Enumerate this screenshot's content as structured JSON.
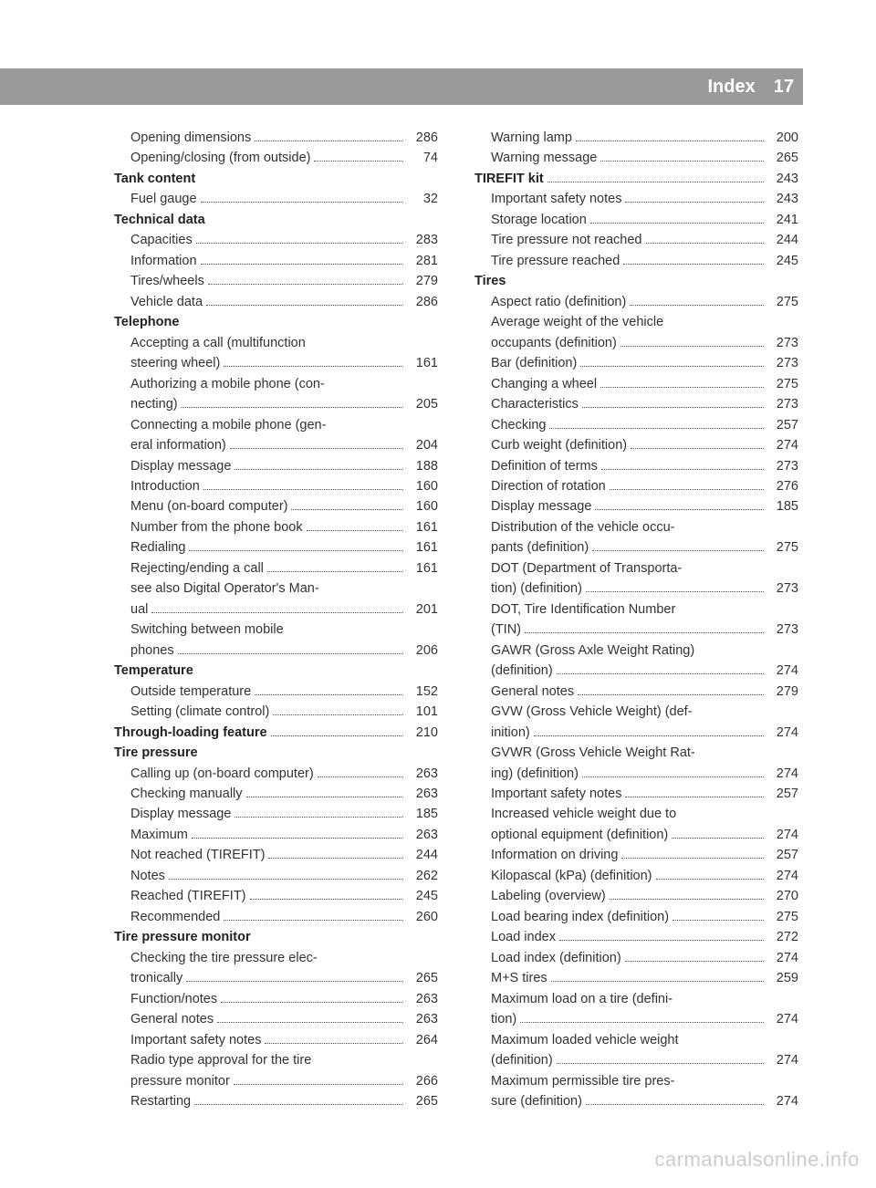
{
  "header": {
    "title": "Index",
    "page": "17"
  },
  "watermark": "carmanualsonline.info",
  "colors": {
    "header_bg": "#9a9a9a",
    "header_text": "#ffffff",
    "text": "#333333",
    "dots": "#555555",
    "watermark": "#cccccc"
  },
  "columns": {
    "left": [
      {
        "type": "sub",
        "label": "Opening dimensions",
        "page": "286"
      },
      {
        "type": "sub",
        "label": "Opening/closing (from outside)",
        "page": "74"
      },
      {
        "type": "heading",
        "label": "Tank content"
      },
      {
        "type": "sub",
        "label": "Fuel gauge",
        "page": "32"
      },
      {
        "type": "heading",
        "label": "Technical data"
      },
      {
        "type": "sub",
        "label": "Capacities",
        "page": "283"
      },
      {
        "type": "sub",
        "label": "Information",
        "page": "281"
      },
      {
        "type": "sub",
        "label": "Tires/wheels",
        "page": "279"
      },
      {
        "type": "sub",
        "label": "Vehicle data",
        "page": "286"
      },
      {
        "type": "heading",
        "label": "Telephone"
      },
      {
        "type": "text",
        "label": "Accepting a call (multifunction"
      },
      {
        "type": "cont",
        "label": "steering wheel)",
        "page": "161"
      },
      {
        "type": "text",
        "label": "Authorizing a mobile phone (con-"
      },
      {
        "type": "cont",
        "label": "necting)",
        "page": "205"
      },
      {
        "type": "text",
        "label": "Connecting a mobile phone (gen-"
      },
      {
        "type": "cont",
        "label": "eral information)",
        "page": "204"
      },
      {
        "type": "sub",
        "label": "Display message",
        "page": "188"
      },
      {
        "type": "sub",
        "label": "Introduction",
        "page": "160"
      },
      {
        "type": "sub",
        "label": "Menu (on-board computer)",
        "page": "160"
      },
      {
        "type": "sub",
        "label": "Number from the phone book",
        "page": "161"
      },
      {
        "type": "sub",
        "label": "Redialing",
        "page": "161"
      },
      {
        "type": "sub",
        "label": "Rejecting/ending a call",
        "page": "161"
      },
      {
        "type": "text",
        "label": "see also Digital Operator's Man-"
      },
      {
        "type": "cont",
        "label": "ual",
        "page": "201"
      },
      {
        "type": "text",
        "label": "Switching between mobile"
      },
      {
        "type": "cont",
        "label": "phones",
        "page": "206"
      },
      {
        "type": "heading",
        "label": "Temperature"
      },
      {
        "type": "sub",
        "label": "Outside temperature",
        "page": "152"
      },
      {
        "type": "sub",
        "label": "Setting (climate control)",
        "page": "101"
      },
      {
        "type": "bold",
        "label": "Through-loading feature",
        "page": "210"
      },
      {
        "type": "heading",
        "label": "Tire pressure"
      },
      {
        "type": "sub",
        "label": "Calling up (on-board computer)",
        "page": "263"
      },
      {
        "type": "sub",
        "label": "Checking manually",
        "page": "263"
      },
      {
        "type": "sub",
        "label": "Display message",
        "page": "185"
      },
      {
        "type": "sub",
        "label": "Maximum",
        "page": "263"
      },
      {
        "type": "sub",
        "label": "Not reached (TIREFIT)",
        "page": "244"
      },
      {
        "type": "sub",
        "label": "Notes",
        "page": "262"
      },
      {
        "type": "sub",
        "label": "Reached (TIREFIT)",
        "page": "245"
      },
      {
        "type": "sub",
        "label": "Recommended",
        "page": "260"
      },
      {
        "type": "heading",
        "label": "Tire pressure monitor"
      },
      {
        "type": "text",
        "label": "Checking the tire pressure elec-"
      },
      {
        "type": "cont",
        "label": "tronically",
        "page": "265"
      },
      {
        "type": "sub",
        "label": "Function/notes",
        "page": "263"
      },
      {
        "type": "sub",
        "label": "General notes",
        "page": "263"
      },
      {
        "type": "sub",
        "label": "Important safety notes",
        "page": "264"
      },
      {
        "type": "text",
        "label": "Radio type approval for the tire"
      },
      {
        "type": "cont",
        "label": "pressure monitor",
        "page": "266"
      },
      {
        "type": "sub",
        "label": "Restarting",
        "page": "265"
      }
    ],
    "right": [
      {
        "type": "sub",
        "label": "Warning lamp",
        "page": "200"
      },
      {
        "type": "sub",
        "label": "Warning message",
        "page": "265"
      },
      {
        "type": "bold",
        "label": "TIREFIT kit",
        "page": "243"
      },
      {
        "type": "sub",
        "label": "Important safety notes",
        "page": "243"
      },
      {
        "type": "sub",
        "label": "Storage location",
        "page": "241"
      },
      {
        "type": "sub",
        "label": "Tire pressure not reached",
        "page": "244"
      },
      {
        "type": "sub",
        "label": "Tire pressure reached",
        "page": "245"
      },
      {
        "type": "heading",
        "label": "Tires"
      },
      {
        "type": "sub",
        "label": "Aspect ratio (definition)",
        "page": "275"
      },
      {
        "type": "text",
        "label": "Average weight of the vehicle"
      },
      {
        "type": "cont",
        "label": "occupants (definition)",
        "page": "273"
      },
      {
        "type": "sub",
        "label": "Bar (definition)",
        "page": "273"
      },
      {
        "type": "sub",
        "label": "Changing a wheel",
        "page": "275"
      },
      {
        "type": "sub",
        "label": "Characteristics",
        "page": "273"
      },
      {
        "type": "sub",
        "label": "Checking",
        "page": "257"
      },
      {
        "type": "sub",
        "label": "Curb weight (definition)",
        "page": "274"
      },
      {
        "type": "sub",
        "label": "Definition of terms",
        "page": "273"
      },
      {
        "type": "sub",
        "label": "Direction of rotation",
        "page": "276"
      },
      {
        "type": "sub",
        "label": "Display message",
        "page": "185"
      },
      {
        "type": "text",
        "label": "Distribution of the vehicle occu-"
      },
      {
        "type": "cont",
        "label": "pants (definition)",
        "page": "275"
      },
      {
        "type": "text",
        "label": "DOT (Department of Transporta-"
      },
      {
        "type": "cont",
        "label": "tion) (definition)",
        "page": "273"
      },
      {
        "type": "text",
        "label": "DOT, Tire Identification Number"
      },
      {
        "type": "cont",
        "label": "(TIN)",
        "page": "273"
      },
      {
        "type": "text",
        "label": "GAWR (Gross Axle Weight Rating)"
      },
      {
        "type": "cont",
        "label": "(definition)",
        "page": "274"
      },
      {
        "type": "sub",
        "label": "General notes",
        "page": "279"
      },
      {
        "type": "text",
        "label": "GVW (Gross Vehicle Weight) (def-"
      },
      {
        "type": "cont",
        "label": "inition)",
        "page": "274"
      },
      {
        "type": "text",
        "label": "GVWR (Gross Vehicle Weight Rat-"
      },
      {
        "type": "cont",
        "label": "ing) (definition)",
        "page": "274"
      },
      {
        "type": "sub",
        "label": "Important safety notes",
        "page": "257"
      },
      {
        "type": "text",
        "label": "Increased vehicle weight due to"
      },
      {
        "type": "cont",
        "label": "optional equipment (definition)",
        "page": "274"
      },
      {
        "type": "sub",
        "label": "Information on driving",
        "page": "257"
      },
      {
        "type": "sub",
        "label": "Kilopascal (kPa) (definition)",
        "page": "274"
      },
      {
        "type": "sub",
        "label": "Labeling (overview)",
        "page": "270"
      },
      {
        "type": "sub",
        "label": "Load bearing index (definition)",
        "page": "275"
      },
      {
        "type": "sub",
        "label": "Load index",
        "page": "272"
      },
      {
        "type": "sub",
        "label": "Load index (definition)",
        "page": "274"
      },
      {
        "type": "sub",
        "label": "M+S tires",
        "page": "259"
      },
      {
        "type": "text",
        "label": "Maximum load on a tire (defini-"
      },
      {
        "type": "cont",
        "label": "tion)",
        "page": "274"
      },
      {
        "type": "text",
        "label": "Maximum loaded vehicle weight"
      },
      {
        "type": "cont",
        "label": "(definition)",
        "page": "274"
      },
      {
        "type": "text",
        "label": "Maximum permissible tire pres-"
      },
      {
        "type": "cont",
        "label": "sure (definition)",
        "page": "274"
      }
    ]
  }
}
